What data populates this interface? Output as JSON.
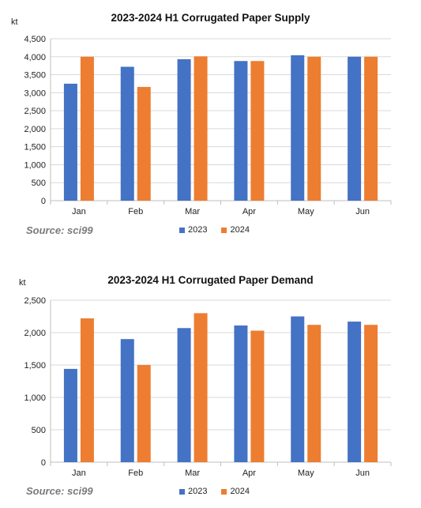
{
  "colors": {
    "series_2023": "#4472C4",
    "series_2024": "#ED7D31",
    "grid": "#d9d9d9",
    "axis": "#bfbfbf"
  },
  "chart_data": [
    {
      "type": "bar",
      "title": "2023-2024 H1 Corrugated Paper Supply",
      "unit": "kt",
      "categories": [
        "Jan",
        "Feb",
        "Mar",
        "Apr",
        "May",
        "Jun"
      ],
      "series": [
        {
          "name": "2023",
          "values": [
            3250,
            3720,
            3930,
            3880,
            4040,
            4000
          ]
        },
        {
          "name": "2024",
          "values": [
            4000,
            3160,
            4010,
            3880,
            4000,
            4000
          ]
        }
      ],
      "ylim": [
        0,
        4500
      ],
      "yticks": [
        0,
        500,
        1000,
        1500,
        2000,
        2500,
        3000,
        3500,
        4000,
        4500
      ],
      "ytick_labels": [
        "0",
        "500",
        "1,000",
        "1,500",
        "2,000",
        "2,500",
        "3,000",
        "3,500",
        "4,000",
        "4,500"
      ],
      "grid": true,
      "legend": "bottom",
      "source": "Source: sci99"
    },
    {
      "type": "bar",
      "title": "2023-2024 H1 Corrugated Paper Demand",
      "unit": "kt",
      "categories": [
        "Jan",
        "Feb",
        "Mar",
        "Apr",
        "May",
        "Jun"
      ],
      "series": [
        {
          "name": "2023",
          "values": [
            1440,
            1900,
            2070,
            2110,
            2250,
            2170
          ]
        },
        {
          "name": "2024",
          "values": [
            2220,
            1500,
            2300,
            2030,
            2120,
            2120
          ]
        }
      ],
      "ylim": [
        0,
        2500
      ],
      "yticks": [
        0,
        500,
        1000,
        1500,
        2000,
        2500
      ],
      "ytick_labels": [
        "0",
        "500",
        "1,000",
        "1,500",
        "2,000",
        "2,500"
      ],
      "grid": true,
      "legend": "bottom",
      "source": "Source: sci99"
    }
  ]
}
